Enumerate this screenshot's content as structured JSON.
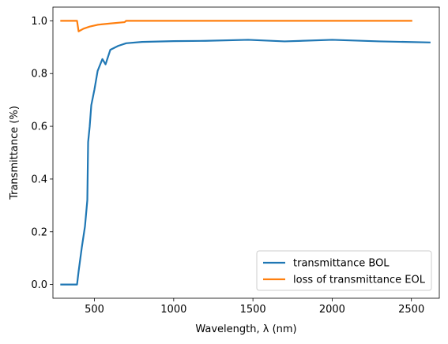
{
  "chart_data": {
    "type": "line",
    "title": "",
    "xlabel": "Wavelength, λ (nm)",
    "ylabel": "Transmittance (%)",
    "xlim": [
      238,
      2676
    ],
    "ylim": [
      -0.052,
      1.052
    ],
    "xticks": [
      500,
      1000,
      1500,
      2000,
      2500
    ],
    "yticks": [
      0.0,
      0.2,
      0.4,
      0.6,
      0.8,
      1.0
    ],
    "xtick_labels": [
      "500",
      "1000",
      "1500",
      "2000",
      "2500"
    ],
    "ytick_labels": [
      "0.0",
      "0.2",
      "0.4",
      "0.6",
      "0.8",
      "1.0"
    ],
    "grid": false,
    "legend_position": "lower-right",
    "series": [
      {
        "name": "transmittance BOL",
        "color": "#1f77b4",
        "points": [
          [
            290,
            0.0
          ],
          [
            390,
            0.0
          ],
          [
            400,
            0.05
          ],
          [
            420,
            0.14
          ],
          [
            440,
            0.22
          ],
          [
            455,
            0.32
          ],
          [
            460,
            0.54
          ],
          [
            470,
            0.6
          ],
          [
            480,
            0.68
          ],
          [
            500,
            0.74
          ],
          [
            520,
            0.81
          ],
          [
            550,
            0.855
          ],
          [
            570,
            0.835
          ],
          [
            600,
            0.89
          ],
          [
            650,
            0.905
          ],
          [
            700,
            0.915
          ],
          [
            800,
            0.92
          ],
          [
            1000,
            0.923
          ],
          [
            1200,
            0.924
          ],
          [
            1470,
            0.928
          ],
          [
            1700,
            0.922
          ],
          [
            2000,
            0.928
          ],
          [
            2300,
            0.922
          ],
          [
            2615,
            0.918
          ]
        ]
      },
      {
        "name": "loss of transmittance EOL",
        "color": "#ff7f0e",
        "points": [
          [
            290,
            1.0
          ],
          [
            390,
            1.0
          ],
          [
            400,
            0.96
          ],
          [
            430,
            0.97
          ],
          [
            470,
            0.978
          ],
          [
            520,
            0.985
          ],
          [
            600,
            0.99
          ],
          [
            690,
            0.995
          ],
          [
            700,
            1.0
          ],
          [
            1000,
            1.0
          ],
          [
            1500,
            1.0
          ],
          [
            2000,
            1.0
          ],
          [
            2500,
            1.0
          ]
        ]
      }
    ]
  }
}
